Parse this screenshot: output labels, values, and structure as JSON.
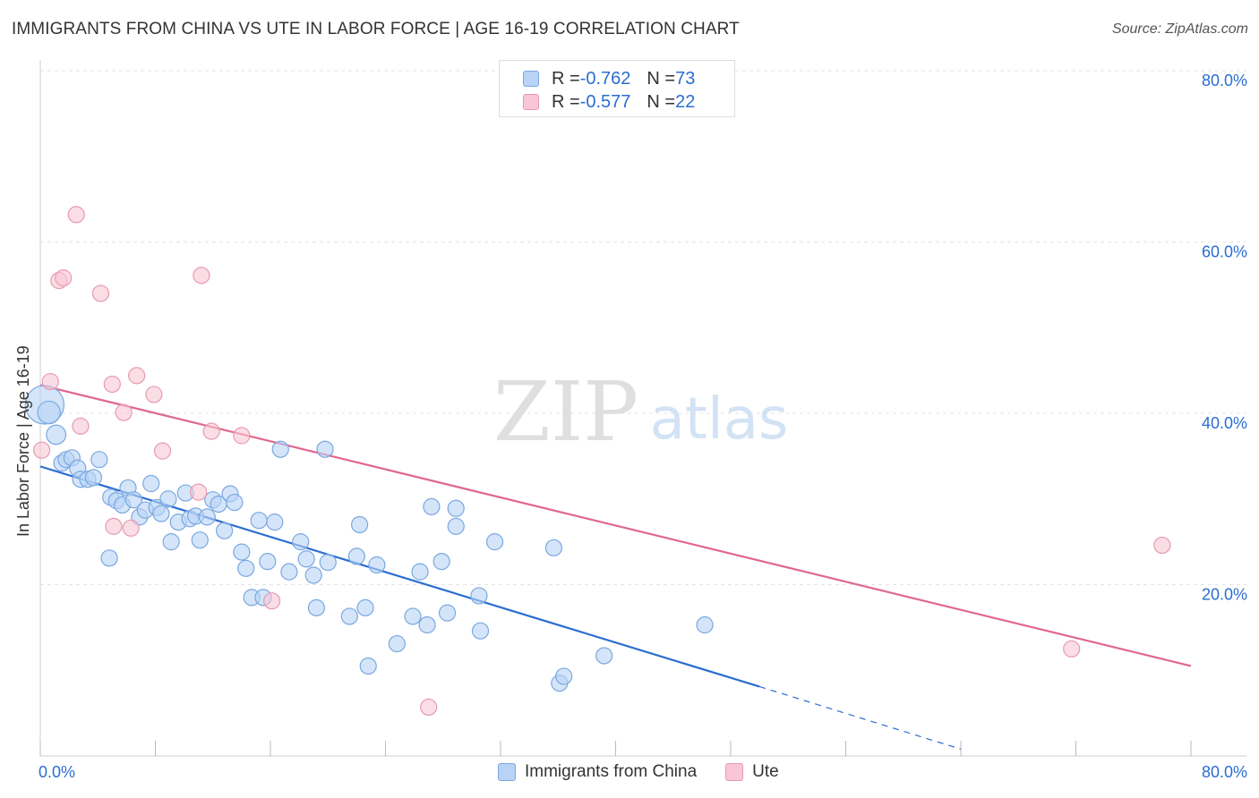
{
  "header": {
    "title": "IMMIGRANTS FROM CHINA VS UTE IN LABOR FORCE | AGE 16-19 CORRELATION CHART",
    "source": "Source: ZipAtlas.com"
  },
  "legend_top": {
    "rows": [
      {
        "r_label": "R = ",
        "r_value": "-0.762",
        "n_label": "N = ",
        "n_value": "73"
      },
      {
        "r_label": "R = ",
        "r_value": "-0.577",
        "n_label": "N = ",
        "n_value": "22"
      }
    ]
  },
  "legend_bottom": {
    "items": [
      "Immigrants from China",
      "Ute"
    ]
  },
  "watermark": {
    "zip": "ZIP",
    "atlas": "atlas"
  },
  "colors": {
    "blue_fill": "#b8d3f5",
    "blue_stroke": "#7aa7e0",
    "blue_line": "#2a6dd1",
    "pink_fill": "#f8c6d4",
    "pink_stroke": "#e79ab1",
    "pink_line": "#e0688f",
    "tick_text": "#2a6dd1",
    "grid": "#e3e3e3"
  },
  "chart_data": {
    "type": "scatter",
    "title": "IMMIGRANTS FROM CHINA VS UTE IN LABOR FORCE | AGE 16-19 CORRELATION CHART",
    "xlabel": "",
    "ylabel": "In Labor Force | Age 16-19",
    "xlim": [
      0,
      80
    ],
    "ylim": [
      0,
      80
    ],
    "x_tick_labels": [
      "0.0%",
      "80.0%"
    ],
    "y_ticks": [
      20,
      40,
      60,
      80
    ],
    "y_tick_labels": [
      "20.0%",
      "40.0%",
      "60.0%",
      "80.0%"
    ],
    "series": [
      {
        "name": "Immigrants from China",
        "color": "#b8d3f5",
        "R": -0.762,
        "N": 73,
        "trend": {
          "x0": 0,
          "y0": 33.8,
          "x1": 50,
          "y1": 8.1,
          "dash_to_x": 64,
          "dash_to_y": 0.8
        },
        "points": [
          {
            "x": 0.3,
            "y": 41.0,
            "s": 2.4
          },
          {
            "x": 0.6,
            "y": 40.1,
            "s": 1.4
          },
          {
            "x": 1.1,
            "y": 37.5,
            "s": 1.2
          },
          {
            "x": 1.5,
            "y": 34.2
          },
          {
            "x": 1.8,
            "y": 34.6
          },
          {
            "x": 2.2,
            "y": 34.8
          },
          {
            "x": 2.6,
            "y": 33.6
          },
          {
            "x": 2.8,
            "y": 32.3
          },
          {
            "x": 3.3,
            "y": 32.3
          },
          {
            "x": 3.7,
            "y": 32.5
          },
          {
            "x": 4.1,
            "y": 34.6
          },
          {
            "x": 4.8,
            "y": 23.1
          },
          {
            "x": 4.9,
            "y": 30.2
          },
          {
            "x": 5.3,
            "y": 29.8
          },
          {
            "x": 5.7,
            "y": 29.3
          },
          {
            "x": 6.1,
            "y": 31.3
          },
          {
            "x": 6.5,
            "y": 29.9
          },
          {
            "x": 6.9,
            "y": 27.9
          },
          {
            "x": 7.3,
            "y": 28.7
          },
          {
            "x": 7.7,
            "y": 31.8
          },
          {
            "x": 8.1,
            "y": 29.0
          },
          {
            "x": 8.4,
            "y": 28.3
          },
          {
            "x": 8.9,
            "y": 30.0
          },
          {
            "x": 9.1,
            "y": 25.0
          },
          {
            "x": 9.6,
            "y": 27.3
          },
          {
            "x": 10.1,
            "y": 30.7
          },
          {
            "x": 10.4,
            "y": 27.7
          },
          {
            "x": 10.8,
            "y": 28.0
          },
          {
            "x": 11.1,
            "y": 25.2
          },
          {
            "x": 11.6,
            "y": 27.9
          },
          {
            "x": 12.0,
            "y": 29.9
          },
          {
            "x": 12.4,
            "y": 29.4
          },
          {
            "x": 12.8,
            "y": 26.3
          },
          {
            "x": 13.2,
            "y": 30.6
          },
          {
            "x": 13.5,
            "y": 29.6
          },
          {
            "x": 14.0,
            "y": 23.8
          },
          {
            "x": 14.3,
            "y": 21.9
          },
          {
            "x": 14.7,
            "y": 18.5
          },
          {
            "x": 15.2,
            "y": 27.5
          },
          {
            "x": 15.5,
            "y": 18.5
          },
          {
            "x": 15.8,
            "y": 22.7
          },
          {
            "x": 16.3,
            "y": 27.3
          },
          {
            "x": 16.7,
            "y": 35.8
          },
          {
            "x": 17.3,
            "y": 21.5
          },
          {
            "x": 18.1,
            "y": 25.0
          },
          {
            "x": 18.5,
            "y": 23.0
          },
          {
            "x": 19.0,
            "y": 21.1
          },
          {
            "x": 19.2,
            "y": 17.3
          },
          {
            "x": 19.8,
            "y": 35.8
          },
          {
            "x": 20.0,
            "y": 22.6
          },
          {
            "x": 21.5,
            "y": 16.3
          },
          {
            "x": 22.0,
            "y": 23.3
          },
          {
            "x": 22.2,
            "y": 27.0
          },
          {
            "x": 22.6,
            "y": 17.3
          },
          {
            "x": 22.8,
            "y": 10.5
          },
          {
            "x": 23.4,
            "y": 22.3
          },
          {
            "x": 24.8,
            "y": 13.1
          },
          {
            "x": 25.9,
            "y": 16.3
          },
          {
            "x": 26.4,
            "y": 21.5
          },
          {
            "x": 26.9,
            "y": 15.3
          },
          {
            "x": 27.2,
            "y": 29.1
          },
          {
            "x": 27.9,
            "y": 22.7
          },
          {
            "x": 28.3,
            "y": 16.7
          },
          {
            "x": 28.9,
            "y": 28.9
          },
          {
            "x": 28.9,
            "y": 26.8
          },
          {
            "x": 30.5,
            "y": 18.7
          },
          {
            "x": 30.6,
            "y": 14.6
          },
          {
            "x": 31.6,
            "y": 25.0
          },
          {
            "x": 35.7,
            "y": 24.3
          },
          {
            "x": 36.1,
            "y": 8.5
          },
          {
            "x": 36.4,
            "y": 9.3
          },
          {
            "x": 39.2,
            "y": 11.7
          },
          {
            "x": 46.2,
            "y": 15.3
          }
        ]
      },
      {
        "name": "Ute",
        "color": "#f8c6d4",
        "R": -0.577,
        "N": 22,
        "trend": {
          "x0": 0,
          "y0": 43.3,
          "x1": 80,
          "y1": 10.5
        },
        "points": [
          {
            "x": 0.1,
            "y": 35.7
          },
          {
            "x": 0.7,
            "y": 43.7
          },
          {
            "x": 1.3,
            "y": 55.5
          },
          {
            "x": 1.6,
            "y": 55.8
          },
          {
            "x": 2.5,
            "y": 63.2
          },
          {
            "x": 2.8,
            "y": 38.5
          },
          {
            "x": 4.2,
            "y": 54.0
          },
          {
            "x": 5.0,
            "y": 43.4
          },
          {
            "x": 5.1,
            "y": 26.8
          },
          {
            "x": 5.8,
            "y": 40.1
          },
          {
            "x": 6.3,
            "y": 26.6
          },
          {
            "x": 6.7,
            "y": 44.4
          },
          {
            "x": 7.9,
            "y": 42.2
          },
          {
            "x": 8.5,
            "y": 35.6
          },
          {
            "x": 11.0,
            "y": 30.8
          },
          {
            "x": 11.2,
            "y": 56.1
          },
          {
            "x": 11.9,
            "y": 37.9
          },
          {
            "x": 14.0,
            "y": 37.4
          },
          {
            "x": 16.1,
            "y": 18.1
          },
          {
            "x": 27.0,
            "y": 5.7
          },
          {
            "x": 71.7,
            "y": 12.5
          },
          {
            "x": 78.0,
            "y": 24.6
          }
        ]
      }
    ]
  }
}
